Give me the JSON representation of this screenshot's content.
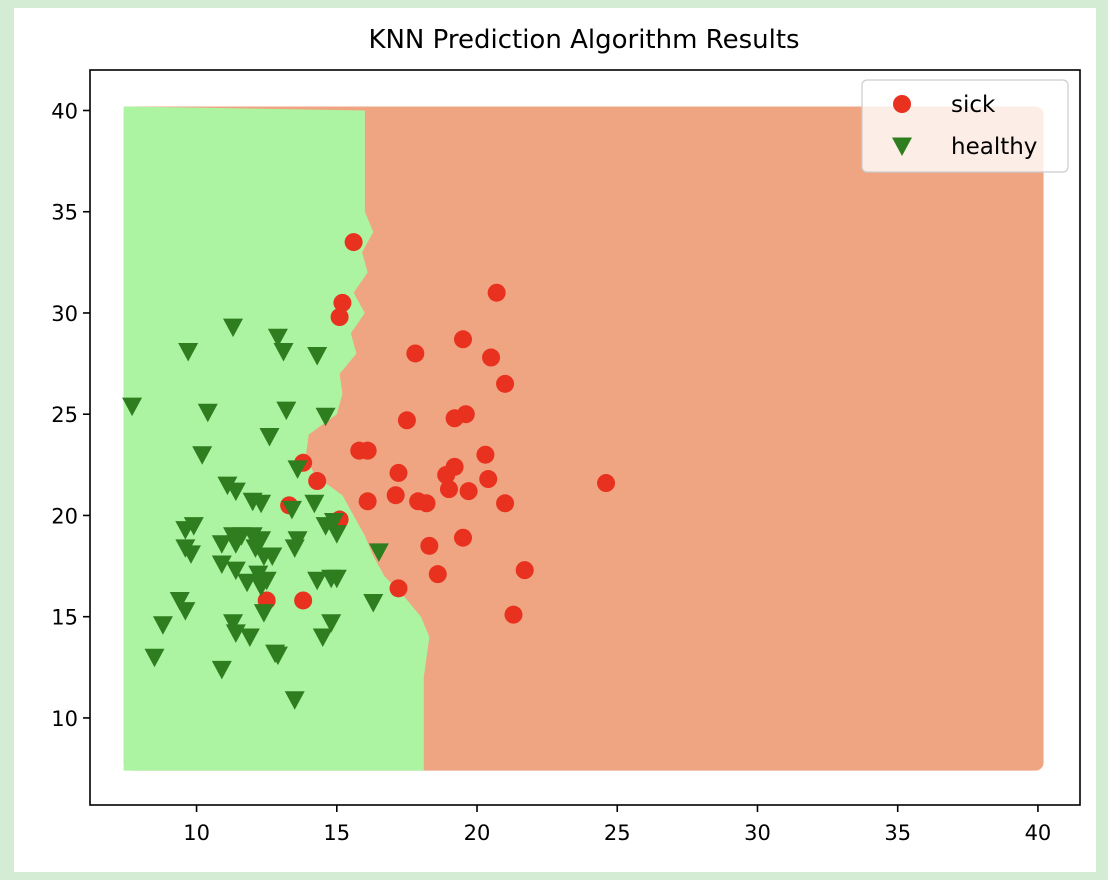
{
  "chart_data": {
    "type": "scatter",
    "title": "KNN Prediction Algorithm Results",
    "xlabel": "",
    "ylabel": "",
    "xlim": [
      6.2,
      41.5
    ],
    "ylim": [
      5.7,
      42.0
    ],
    "xticks": [
      10,
      15,
      20,
      25,
      30,
      35,
      40
    ],
    "yticks": [
      10,
      15,
      20,
      25,
      30,
      35,
      40
    ],
    "grid": false,
    "legend_position": "top-right",
    "colors": {
      "sick": "#e8311f",
      "healthy": "#2e7d1f",
      "sick_region": "#f0a582",
      "healthy_region": "#adf4a2",
      "frame_background": "#d4ecd4"
    },
    "decision_region": {
      "x_range": [
        7.4,
        40.2
      ],
      "y_range": [
        7.4,
        40.2
      ],
      "healthy_boundary": [
        [
          40.0,
          16.0
        ],
        [
          35.0,
          16.0
        ],
        [
          34.0,
          16.3
        ],
        [
          33.0,
          15.9
        ],
        [
          32.0,
          16.1
        ],
        [
          31.0,
          15.6
        ],
        [
          30.0,
          16.0
        ],
        [
          29.0,
          15.5
        ],
        [
          28.0,
          15.7
        ],
        [
          27.0,
          15.1
        ],
        [
          26.0,
          15.2
        ],
        [
          25.0,
          15.0
        ],
        [
          24.0,
          14.0
        ],
        [
          23.0,
          13.9
        ],
        [
          22.0,
          14.2
        ],
        [
          21.0,
          15.2
        ],
        [
          20.0,
          15.6
        ],
        [
          19.0,
          16.0
        ],
        [
          18.0,
          16.3
        ],
        [
          17.0,
          16.7
        ],
        [
          16.0,
          17.4
        ],
        [
          15.0,
          18.0
        ],
        [
          14.0,
          18.3
        ],
        [
          13.0,
          18.2
        ],
        [
          12.0,
          18.1
        ],
        [
          7.4,
          18.1
        ]
      ]
    },
    "series": [
      {
        "name": "sick",
        "marker": "circle",
        "points": [
          [
            15.6,
            33.5
          ],
          [
            20.7,
            31.0
          ],
          [
            15.2,
            30.5
          ],
          [
            15.1,
            29.8
          ],
          [
            19.5,
            28.7
          ],
          [
            17.8,
            28.0
          ],
          [
            20.5,
            27.8
          ],
          [
            21.0,
            26.5
          ],
          [
            17.5,
            24.7
          ],
          [
            19.2,
            24.8
          ],
          [
            19.6,
            25.0
          ],
          [
            15.8,
            23.2
          ],
          [
            16.1,
            23.2
          ],
          [
            20.3,
            23.0
          ],
          [
            13.8,
            22.6
          ],
          [
            14.3,
            21.7
          ],
          [
            17.2,
            22.1
          ],
          [
            18.9,
            22.0
          ],
          [
            19.2,
            22.4
          ],
          [
            20.4,
            21.8
          ],
          [
            24.6,
            21.6
          ],
          [
            17.1,
            21.0
          ],
          [
            19.0,
            21.3
          ],
          [
            19.7,
            21.2
          ],
          [
            16.1,
            20.7
          ],
          [
            17.9,
            20.7
          ],
          [
            18.2,
            20.6
          ],
          [
            21.0,
            20.6
          ],
          [
            13.3,
            20.5
          ],
          [
            15.1,
            19.8
          ],
          [
            18.3,
            18.5
          ],
          [
            19.5,
            18.9
          ],
          [
            18.6,
            17.1
          ],
          [
            21.7,
            17.3
          ],
          [
            17.2,
            16.4
          ],
          [
            21.3,
            15.1
          ],
          [
            12.5,
            15.8
          ],
          [
            13.8,
            15.8
          ]
        ]
      },
      {
        "name": "healthy",
        "marker": "triangle_down",
        "points": [
          [
            7.7,
            25.4
          ],
          [
            9.7,
            28.1
          ],
          [
            11.3,
            29.3
          ],
          [
            12.9,
            28.8
          ],
          [
            13.1,
            28.1
          ],
          [
            14.3,
            27.9
          ],
          [
            10.4,
            25.1
          ],
          [
            13.2,
            25.2
          ],
          [
            14.6,
            24.9
          ],
          [
            10.2,
            23.0
          ],
          [
            12.6,
            23.9
          ],
          [
            13.6,
            22.3
          ],
          [
            11.1,
            21.5
          ],
          [
            11.4,
            21.2
          ],
          [
            14.2,
            20.6
          ],
          [
            12.0,
            20.7
          ],
          [
            12.3,
            20.6
          ],
          [
            13.4,
            20.3
          ],
          [
            9.6,
            19.3
          ],
          [
            9.9,
            19.5
          ],
          [
            11.3,
            19.0
          ],
          [
            11.6,
            19.0
          ],
          [
            12.0,
            19.0
          ],
          [
            12.3,
            18.8
          ],
          [
            14.6,
            19.5
          ],
          [
            14.9,
            19.7
          ],
          [
            15.0,
            19.1
          ],
          [
            13.6,
            18.8
          ],
          [
            9.6,
            18.4
          ],
          [
            9.8,
            18.1
          ],
          [
            10.9,
            18.6
          ],
          [
            11.4,
            18.6
          ],
          [
            12.1,
            18.4
          ],
          [
            12.4,
            18.0
          ],
          [
            12.7,
            18.0
          ],
          [
            13.5,
            18.4
          ],
          [
            16.5,
            18.2
          ],
          [
            10.9,
            17.6
          ],
          [
            11.4,
            17.3
          ],
          [
            12.2,
            17.1
          ],
          [
            12.5,
            16.8
          ],
          [
            11.8,
            16.7
          ],
          [
            12.3,
            16.5
          ],
          [
            14.3,
            16.8
          ],
          [
            14.8,
            16.9
          ],
          [
            15.0,
            16.9
          ],
          [
            9.4,
            15.8
          ],
          [
            9.6,
            15.3
          ],
          [
            16.3,
            15.7
          ],
          [
            11.3,
            14.7
          ],
          [
            11.4,
            14.2
          ],
          [
            11.9,
            14.0
          ],
          [
            12.4,
            15.2
          ],
          [
            14.8,
            14.7
          ],
          [
            8.8,
            14.6
          ],
          [
            14.5,
            14.0
          ],
          [
            12.8,
            13.2
          ],
          [
            12.9,
            13.1
          ],
          [
            8.5,
            13.0
          ],
          [
            10.9,
            12.4
          ],
          [
            13.5,
            10.9
          ]
        ]
      }
    ]
  }
}
